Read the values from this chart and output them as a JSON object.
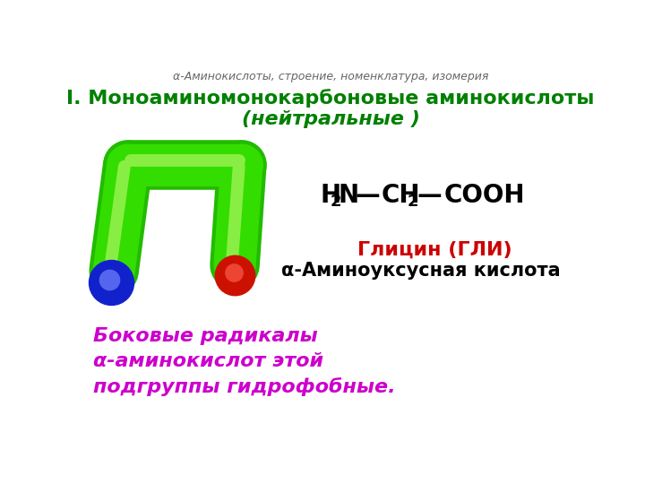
{
  "background_color": "#ffffff",
  "subtitle": "α-Аминокислоты, строение, номенклатура, изомерия",
  "title_line1": "I. Моноаминомонокарбоновые аминокислоты",
  "title_line2": "(нейтральные )",
  "glycine_name": "Глицин (ГЛИ)",
  "acid_name": "α-Аминоуксусная кислота",
  "bottom_text_line1": "Боковые радикалы",
  "bottom_text_line2": "α-аминокислот этой",
  "bottom_text_line3": "подгруппы гидрофобные.",
  "title_color": "#008000",
  "glycine_color": "#cc0000",
  "acid_color": "#000000",
  "bottom_text_color": "#cc00cc",
  "subtitle_color": "#666666",
  "formula_color": "#000000",
  "green_dark": "#22bb00",
  "green_mid": "#33dd00",
  "green_light": "#88ee44",
  "blue_dark": "#1122cc",
  "blue_light": "#5566ee",
  "red_dark": "#cc1100",
  "red_light": "#ee4433"
}
